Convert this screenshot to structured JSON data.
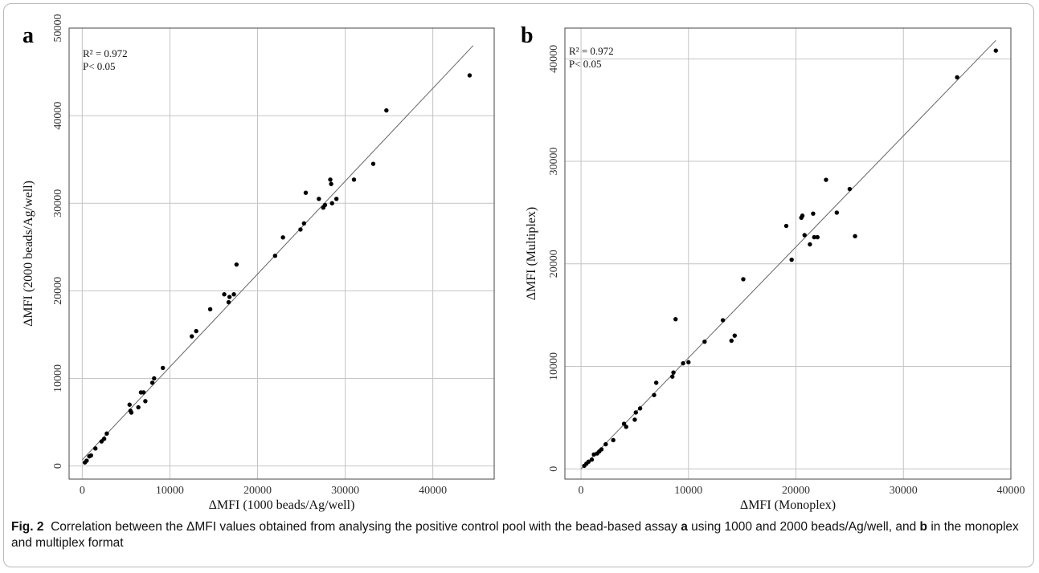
{
  "chart_data": [
    {
      "type": "scatter",
      "panel_label": "a",
      "xlabel": "ΔMFI (1000 beads/Ag/well)",
      "ylabel": "ΔMFI (2000 beads/Ag/well)",
      "stats": [
        "R² = 0.972",
        "P< 0.05"
      ],
      "xlim": [
        -1500,
        47000
      ],
      "ylim": [
        -1500,
        50000
      ],
      "xticks": [
        0,
        10000,
        20000,
        30000,
        40000
      ],
      "yticks": [
        0,
        10000,
        20000,
        30000,
        40000,
        50000
      ],
      "grid": true,
      "fit_line": {
        "x": [
          0,
          44600
        ],
        "y": [
          700,
          48000
        ]
      },
      "points": [
        [
          300,
          400
        ],
        [
          500,
          600
        ],
        [
          800,
          1100
        ],
        [
          1000,
          1200
        ],
        [
          1500,
          2000
        ],
        [
          2200,
          2800
        ],
        [
          2500,
          3100
        ],
        [
          2800,
          3700
        ],
        [
          5400,
          7000
        ],
        [
          5500,
          6300
        ],
        [
          5600,
          6100
        ],
        [
          6400,
          6700
        ],
        [
          6700,
          8400
        ],
        [
          7000,
          8400
        ],
        [
          7200,
          7400
        ],
        [
          8000,
          9500
        ],
        [
          8200,
          10000
        ],
        [
          9200,
          11200
        ],
        [
          12500,
          14800
        ],
        [
          13000,
          15400
        ],
        [
          14600,
          17900
        ],
        [
          16200,
          19600
        ],
        [
          16700,
          18700
        ],
        [
          16800,
          19300
        ],
        [
          17300,
          19600
        ],
        [
          17600,
          23000
        ],
        [
          22000,
          24000
        ],
        [
          22900,
          26100
        ],
        [
          24900,
          27000
        ],
        [
          25300,
          27700
        ],
        [
          25500,
          31200
        ],
        [
          27000,
          30500
        ],
        [
          27500,
          29500
        ],
        [
          27700,
          29800
        ],
        [
          28300,
          32700
        ],
        [
          28400,
          32200
        ],
        [
          28500,
          30000
        ],
        [
          29000,
          30500
        ],
        [
          31000,
          32700
        ],
        [
          33200,
          34500
        ],
        [
          34700,
          40600
        ],
        [
          44200,
          44600
        ]
      ]
    },
    {
      "type": "scatter",
      "panel_label": "b",
      "xlabel": "ΔMFI (Monoplex)",
      "ylabel": "ΔMFI (Multiplex)",
      "stats": [
        "R² = 0.972",
        "P< 0.05"
      ],
      "xlim": [
        -1500,
        40000
      ],
      "ylim": [
        -1000,
        43000
      ],
      "xticks": [
        0,
        10000,
        20000,
        30000,
        40000
      ],
      "yticks": [
        0,
        10000,
        20000,
        30000,
        40000
      ],
      "grid": true,
      "fit_line": {
        "x": [
          0,
          38600
        ],
        "y": [
          0,
          41800
        ]
      },
      "points": [
        [
          300,
          300
        ],
        [
          500,
          500
        ],
        [
          700,
          700
        ],
        [
          1000,
          900
        ],
        [
          1200,
          1400
        ],
        [
          1500,
          1500
        ],
        [
          1700,
          1700
        ],
        [
          1900,
          1900
        ],
        [
          2300,
          2400
        ],
        [
          3000,
          2800
        ],
        [
          4000,
          4400
        ],
        [
          4200,
          4100
        ],
        [
          5000,
          4800
        ],
        [
          5100,
          5500
        ],
        [
          5500,
          5900
        ],
        [
          6800,
          7200
        ],
        [
          7000,
          8400
        ],
        [
          8500,
          9000
        ],
        [
          8600,
          9400
        ],
        [
          8800,
          14600
        ],
        [
          9500,
          10300
        ],
        [
          10000,
          10400
        ],
        [
          11500,
          12400
        ],
        [
          13200,
          14500
        ],
        [
          14000,
          12500
        ],
        [
          14300,
          13000
        ],
        [
          15100,
          18500
        ],
        [
          19100,
          23700
        ],
        [
          19600,
          20400
        ],
        [
          20500,
          24500
        ],
        [
          20600,
          24700
        ],
        [
          20800,
          22800
        ],
        [
          21300,
          21900
        ],
        [
          21600,
          24900
        ],
        [
          21700,
          22600
        ],
        [
          22000,
          22600
        ],
        [
          22800,
          28200
        ],
        [
          23800,
          25000
        ],
        [
          25000,
          27300
        ],
        [
          25500,
          22700
        ],
        [
          35000,
          38200
        ],
        [
          38600,
          40800
        ]
      ]
    }
  ],
  "caption": {
    "label": "Fig. 2",
    "text": "Correlation between the ΔMFI values obtained from analysing the positive control pool with the bead-based assay",
    "bold_a": "a",
    "text_a": "using 1000 and 2000 beads/Ag/well, and",
    "bold_b": "b",
    "text_b": "in the monoplex and multiplex format"
  }
}
